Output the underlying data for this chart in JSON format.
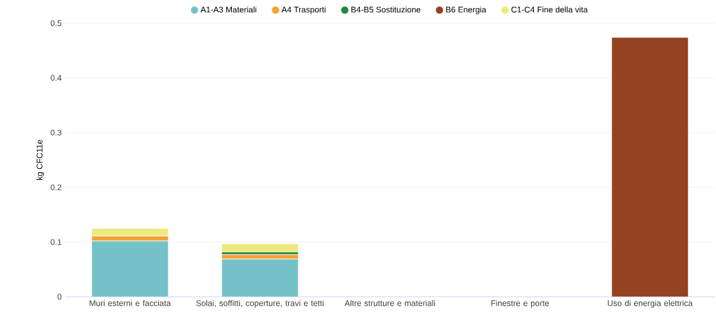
{
  "chart_data": {
    "type": "bar",
    "stacked": true,
    "ylabel": "kg CFC11e",
    "categories": [
      "Muri esterni e facciata",
      "Solai, soffitti, coperture, travi e tetti",
      "Altre strutture e materiali",
      "Finestre e porte",
      "Uso di energia elettrica"
    ],
    "series": [
      {
        "name": "A1-A3 Materiali",
        "color": "#74c2c8",
        "values": [
          0.102,
          0.069,
          0,
          0,
          0
        ]
      },
      {
        "name": "A4 Trasporti",
        "color": "#f6a033",
        "values": [
          0.009,
          0.008,
          0,
          0,
          0
        ]
      },
      {
        "name": "B4-B5 Sostituzione",
        "color": "#1f8a3a",
        "values": [
          0,
          0.005,
          0,
          0,
          0
        ]
      },
      {
        "name": "B6 Energia",
        "color": "#944221",
        "values": [
          0,
          0,
          0,
          0,
          0.474
        ]
      },
      {
        "name": "C1-C4 Fine della vita",
        "color": "#ede97a",
        "values": [
          0.014,
          0.015,
          0,
          0,
          0
        ]
      }
    ],
    "ylim": [
      0,
      0.5
    ],
    "yticks": [
      0,
      0.1,
      0.2,
      0.3,
      0.4,
      0.5
    ],
    "grid": "y",
    "legend": "top"
  }
}
